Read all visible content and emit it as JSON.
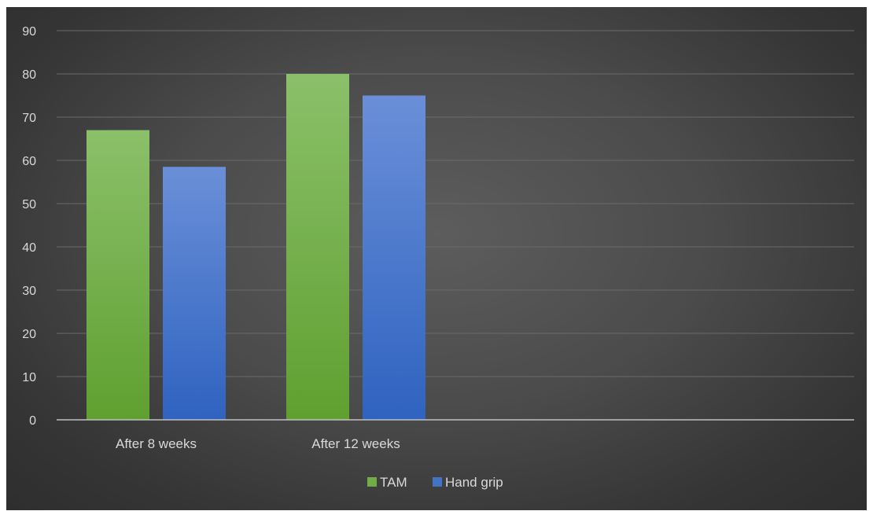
{
  "chart_data": {
    "type": "bar",
    "categories": [
      "After 8 weeks",
      "After 12 weeks"
    ],
    "series": [
      {
        "name": "TAM",
        "values": [
          67,
          80
        ],
        "color": "#70ad47"
      },
      {
        "name": "Hand grip",
        "values": [
          58.5,
          75
        ],
        "color": "#4472c4"
      }
    ],
    "title": "",
    "xlabel": "",
    "ylabel": "",
    "ylim": [
      0,
      90
    ],
    "yticks": [
      0,
      10,
      20,
      30,
      40,
      50,
      60,
      70,
      80,
      90
    ],
    "grid": true,
    "legend_position": "bottom-center"
  }
}
